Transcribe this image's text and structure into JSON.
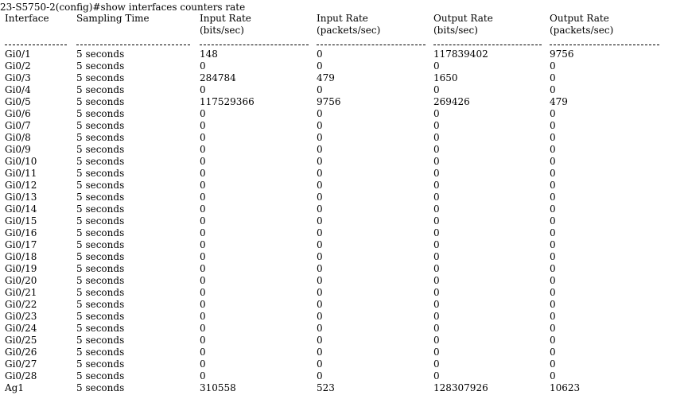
{
  "prompt_line": "23-S5750-2(config)#show interfaces counters rate",
  "headers": [
    [
      "Interface",
      ""
    ],
    [
      "Sampling Time",
      ""
    ],
    [
      "Input Rate",
      "(bits/sec)"
    ],
    [
      "Input Rate",
      "(packets/sec)"
    ],
    [
      "Output Rate",
      "(bits/sec)"
    ],
    [
      "Output Rate",
      "(packets/sec)"
    ]
  ],
  "separator": [
    "------------",
    "--------------------",
    "--------------------",
    "--------------------",
    "--------------------",
    "--------------------"
  ],
  "rows": [
    [
      "Gi0/1",
      "5 seconds",
      "148",
      "0",
      "117839402",
      "9756"
    ],
    [
      "Gi0/2",
      "5 seconds",
      "0",
      "0",
      "0",
      "0"
    ],
    [
      "Gi0/3",
      "5 seconds",
      "284784",
      "479",
      "1650",
      "0"
    ],
    [
      "Gi0/4",
      "5 seconds",
      "0",
      "0",
      "0",
      "0"
    ],
    [
      "Gi0/5",
      "5 seconds",
      "117529366",
      "9756",
      "269426",
      "479"
    ],
    [
      "Gi0/6",
      "5 seconds",
      "0",
      "0",
      "0",
      "0"
    ],
    [
      "Gi0/7",
      "5 seconds",
      "0",
      "0",
      "0",
      "0"
    ],
    [
      "Gi0/8",
      "5 seconds",
      "0",
      "0",
      "0",
      "0"
    ],
    [
      "Gi0/9",
      "5 seconds",
      "0",
      "0",
      "0",
      "0"
    ],
    [
      "Gi0/10",
      "5 seconds",
      "0",
      "0",
      "0",
      "0"
    ],
    [
      "Gi0/11",
      "5 seconds",
      "0",
      "0",
      "0",
      "0"
    ],
    [
      "Gi0/12",
      "5 seconds",
      "0",
      "0",
      "0",
      "0"
    ],
    [
      "Gi0/13",
      "5 seconds",
      "0",
      "0",
      "0",
      "0"
    ],
    [
      "Gi0/14",
      "5 seconds",
      "0",
      "0",
      "0",
      "0"
    ],
    [
      "Gi0/15",
      "5 seconds",
      "0",
      "0",
      "0",
      "0"
    ],
    [
      "Gi0/16",
      "5 seconds",
      "0",
      "0",
      "0",
      "0"
    ],
    [
      "Gi0/17",
      "5 seconds",
      "0",
      "0",
      "0",
      "0"
    ],
    [
      "Gi0/18",
      "5 seconds",
      "0",
      "0",
      "0",
      "0"
    ],
    [
      "Gi0/19",
      "5 seconds",
      "0",
      "0",
      "0",
      "0"
    ],
    [
      "Gi0/20",
      "5 seconds",
      "0",
      "0",
      "0",
      "0"
    ],
    [
      "Gi0/21",
      "5 seconds",
      "0",
      "0",
      "0",
      "0"
    ],
    [
      "Gi0/22",
      "5 seconds",
      "0",
      "0",
      "0",
      "0"
    ],
    [
      "Gi0/23",
      "5 seconds",
      "0",
      "0",
      "0",
      "0"
    ],
    [
      "Gi0/24",
      "5 seconds",
      "0",
      "0",
      "0",
      "0"
    ],
    [
      "Gi0/25",
      "5 seconds",
      "0",
      "0",
      "0",
      "0"
    ],
    [
      "Gi0/26",
      "5 seconds",
      "0",
      "0",
      "0",
      "0"
    ],
    [
      "Gi0/27",
      "5 seconds",
      "0",
      "0",
      "0",
      "0"
    ],
    [
      "Gi0/28",
      "5 seconds",
      "0",
      "0",
      "0",
      "0"
    ],
    [
      "Ag1",
      "5 seconds",
      "310558",
      "523",
      "128307926",
      "10623"
    ]
  ]
}
